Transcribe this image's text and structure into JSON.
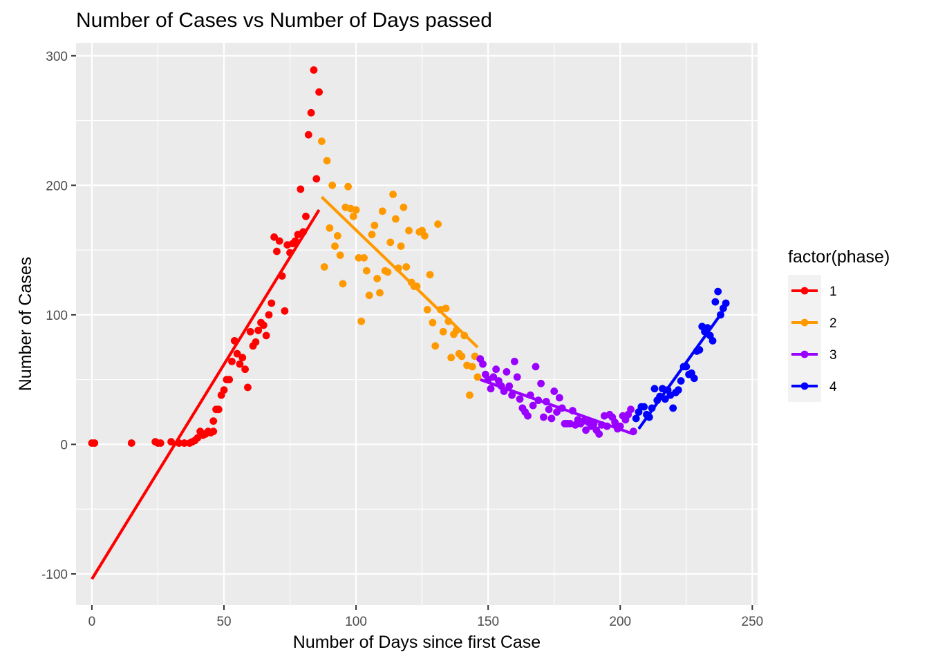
{
  "chart_data": {
    "type": "scatter",
    "title": "Number of Cases vs Number of Days passed",
    "xlabel": "Number of Days since first Case",
    "ylabel": "Number of Cases",
    "xlim": [
      -6,
      252
    ],
    "ylim": [
      -124,
      310
    ],
    "xticks": [
      0,
      50,
      100,
      150,
      200,
      250
    ],
    "xtick_labels": [
      "0",
      "50",
      "100",
      "150",
      "200",
      "250"
    ],
    "yticks": [
      -100,
      0,
      100,
      200,
      300
    ],
    "ytick_labels": [
      "-100",
      "0",
      "100",
      "200",
      "300"
    ],
    "grid": true,
    "legend": {
      "title": "factor(phase)",
      "position": "right"
    },
    "series": [
      {
        "name": "1",
        "color": "#FF0000",
        "points": [
          [
            0,
            1
          ],
          [
            1,
            1
          ],
          [
            15,
            1
          ],
          [
            24,
            2
          ],
          [
            25,
            1
          ],
          [
            26,
            1
          ],
          [
            30,
            2
          ],
          [
            33,
            1
          ],
          [
            35,
            1
          ],
          [
            37,
            1
          ],
          [
            38,
            2
          ],
          [
            39,
            3
          ],
          [
            40,
            5
          ],
          [
            41,
            10
          ],
          [
            42,
            7
          ],
          [
            43,
            8
          ],
          [
            44,
            10
          ],
          [
            45,
            9
          ],
          [
            46,
            10
          ],
          [
            46,
            18
          ],
          [
            47,
            27
          ],
          [
            48,
            27
          ],
          [
            49,
            38
          ],
          [
            50,
            42
          ],
          [
            51,
            50
          ],
          [
            52,
            50
          ],
          [
            53,
            64
          ],
          [
            54,
            80
          ],
          [
            55,
            70
          ],
          [
            56,
            62
          ],
          [
            57,
            67
          ],
          [
            58,
            58
          ],
          [
            59,
            44
          ],
          [
            60,
            87
          ],
          [
            61,
            76
          ],
          [
            62,
            79
          ],
          [
            63,
            88
          ],
          [
            64,
            94
          ],
          [
            65,
            92
          ],
          [
            66,
            84
          ],
          [
            67,
            100
          ],
          [
            68,
            109
          ],
          [
            69,
            160
          ],
          [
            70,
            149
          ],
          [
            71,
            157
          ],
          [
            72,
            130
          ],
          [
            73,
            103
          ],
          [
            74,
            154
          ],
          [
            75,
            148
          ],
          [
            76,
            155
          ],
          [
            77,
            157
          ],
          [
            78,
            162
          ],
          [
            79,
            197
          ],
          [
            80,
            164
          ],
          [
            81,
            176
          ],
          [
            82,
            239
          ],
          [
            83,
            256
          ],
          [
            84,
            289
          ],
          [
            85,
            205
          ],
          [
            86,
            272
          ]
        ],
        "fit": [
          [
            0,
            -104
          ],
          [
            86,
            181
          ]
        ]
      },
      {
        "name": "2",
        "color": "#FF9900",
        "points": [
          [
            87,
            234
          ],
          [
            88,
            137
          ],
          [
            89,
            219
          ],
          [
            90,
            167
          ],
          [
            91,
            200
          ],
          [
            92,
            153
          ],
          [
            93,
            161
          ],
          [
            94,
            146
          ],
          [
            95,
            124
          ],
          [
            96,
            183
          ],
          [
            97,
            199
          ],
          [
            98,
            182
          ],
          [
            99,
            176
          ],
          [
            100,
            181
          ],
          [
            101,
            144
          ],
          [
            102,
            95
          ],
          [
            103,
            144
          ],
          [
            104,
            134
          ],
          [
            105,
            115
          ],
          [
            106,
            162
          ],
          [
            107,
            169
          ],
          [
            108,
            128
          ],
          [
            109,
            117
          ],
          [
            110,
            180
          ],
          [
            111,
            134
          ],
          [
            112,
            133
          ],
          [
            113,
            156
          ],
          [
            114,
            193
          ],
          [
            115,
            174
          ],
          [
            116,
            136
          ],
          [
            117,
            153
          ],
          [
            118,
            183
          ],
          [
            119,
            137
          ],
          [
            120,
            165
          ],
          [
            121,
            125
          ],
          [
            122,
            122
          ],
          [
            123,
            122
          ],
          [
            124,
            164
          ],
          [
            125,
            165
          ],
          [
            126,
            161
          ],
          [
            127,
            104
          ],
          [
            128,
            131
          ],
          [
            129,
            94
          ],
          [
            130,
            76
          ],
          [
            131,
            170
          ],
          [
            132,
            104
          ],
          [
            133,
            87
          ],
          [
            134,
            105
          ],
          [
            135,
            95
          ],
          [
            136,
            67
          ],
          [
            137,
            85
          ],
          [
            138,
            88
          ],
          [
            139,
            70
          ],
          [
            140,
            68
          ],
          [
            141,
            84
          ],
          [
            142,
            61
          ],
          [
            143,
            38
          ],
          [
            144,
            60
          ],
          [
            145,
            68
          ],
          [
            146,
            52
          ]
        ],
        "fit": [
          [
            87,
            191
          ],
          [
            146,
            75
          ]
        ]
      },
      {
        "name": "3",
        "color": "#9900FF",
        "points": [
          [
            147,
            66
          ],
          [
            148,
            62
          ],
          [
            149,
            54
          ],
          [
            150,
            50
          ],
          [
            151,
            43
          ],
          [
            152,
            52
          ],
          [
            153,
            58
          ],
          [
            154,
            49
          ],
          [
            155,
            45
          ],
          [
            156,
            41
          ],
          [
            157,
            56
          ],
          [
            158,
            45
          ],
          [
            159,
            38
          ],
          [
            160,
            64
          ],
          [
            161,
            52
          ],
          [
            162,
            35
          ],
          [
            163,
            28
          ],
          [
            164,
            25
          ],
          [
            165,
            22
          ],
          [
            166,
            38
          ],
          [
            167,
            30
          ],
          [
            168,
            60
          ],
          [
            169,
            34
          ],
          [
            170,
            47
          ],
          [
            171,
            21
          ],
          [
            172,
            33
          ],
          [
            173,
            27
          ],
          [
            174,
            20
          ],
          [
            175,
            41
          ],
          [
            176,
            25
          ],
          [
            177,
            36
          ],
          [
            178,
            28
          ],
          [
            179,
            16
          ],
          [
            180,
            16
          ],
          [
            181,
            16
          ],
          [
            182,
            26
          ],
          [
            183,
            15
          ],
          [
            184,
            19
          ],
          [
            185,
            16
          ],
          [
            186,
            18
          ],
          [
            187,
            11
          ],
          [
            188,
            17
          ],
          [
            189,
            14
          ],
          [
            190,
            16
          ],
          [
            191,
            11
          ],
          [
            192,
            8
          ],
          [
            193,
            15
          ],
          [
            194,
            22
          ],
          [
            195,
            14
          ],
          [
            196,
            23
          ],
          [
            197,
            21
          ],
          [
            198,
            17
          ],
          [
            199,
            12
          ],
          [
            200,
            14
          ],
          [
            201,
            22
          ],
          [
            202,
            19
          ],
          [
            203,
            23
          ],
          [
            204,
            27
          ],
          [
            205,
            10
          ]
        ],
        "fit": [
          [
            147,
            50
          ],
          [
            205,
            8
          ]
        ]
      },
      {
        "name": "4",
        "color": "#0000FF",
        "points": [
          [
            206,
            20
          ],
          [
            207,
            25
          ],
          [
            208,
            29
          ],
          [
            209,
            29
          ],
          [
            210,
            23
          ],
          [
            211,
            21
          ],
          [
            212,
            28
          ],
          [
            213,
            43
          ],
          [
            214,
            34
          ],
          [
            215,
            37
          ],
          [
            216,
            43
          ],
          [
            217,
            35
          ],
          [
            218,
            42
          ],
          [
            219,
            38
          ],
          [
            220,
            28
          ],
          [
            221,
            40
          ],
          [
            222,
            42
          ],
          [
            223,
            49
          ],
          [
            224,
            60
          ],
          [
            225,
            60
          ],
          [
            226,
            54
          ],
          [
            227,
            55
          ],
          [
            228,
            51
          ],
          [
            229,
            72
          ],
          [
            230,
            73
          ],
          [
            231,
            91
          ],
          [
            232,
            87
          ],
          [
            233,
            90
          ],
          [
            234,
            84
          ],
          [
            235,
            80
          ],
          [
            236,
            110
          ],
          [
            237,
            118
          ],
          [
            238,
            100
          ],
          [
            239,
            105
          ],
          [
            240,
            109
          ]
        ],
        "fit": [
          [
            207,
            12
          ],
          [
            240,
            106
          ]
        ]
      }
    ]
  }
}
